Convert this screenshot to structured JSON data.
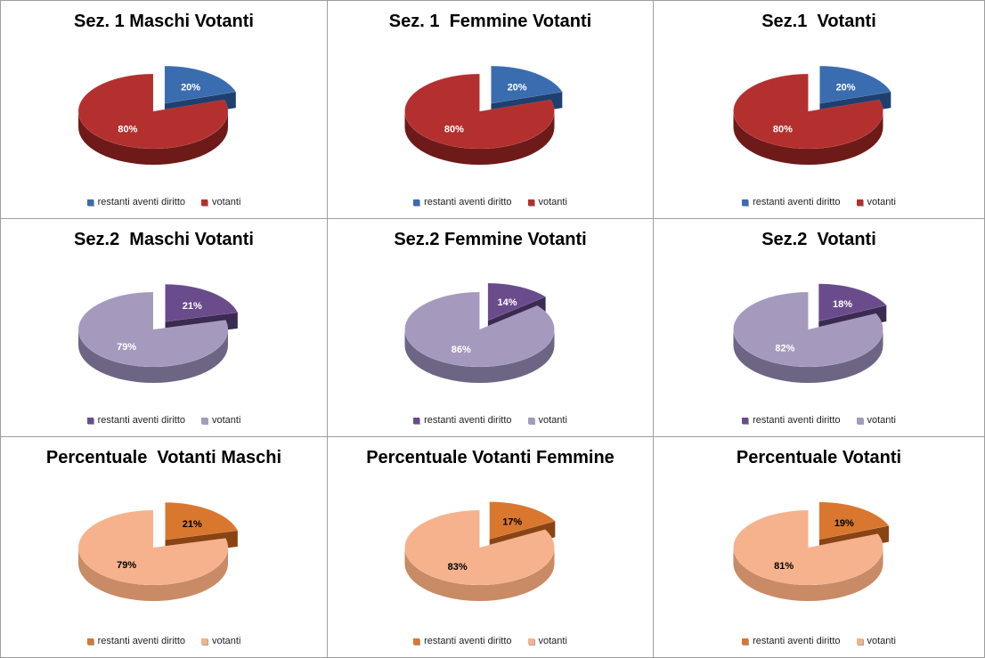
{
  "chart_data": [
    {
      "type": "pie",
      "title": "Sez. 1 Maschi Votanti",
      "categories": [
        "restanti aventi diritto",
        "votanti"
      ],
      "values": [
        20,
        80
      ],
      "labels": [
        "20%",
        "80%"
      ],
      "colors": [
        "#3a6cb0",
        "#b3302e"
      ],
      "side_colors": [
        "#1f3f6e",
        "#6e1a19"
      ],
      "label_color": "#ffffff",
      "legend_position": "bottom"
    },
    {
      "type": "pie",
      "title": "Sez. 1  Femmine Votanti",
      "categories": [
        "restanti aventi diritto",
        "votanti"
      ],
      "values": [
        20,
        80
      ],
      "labels": [
        "20%",
        "80%"
      ],
      "colors": [
        "#3a6cb0",
        "#b3302e"
      ],
      "side_colors": [
        "#1f3f6e",
        "#6e1a19"
      ],
      "label_color": "#ffffff",
      "legend_position": "bottom"
    },
    {
      "type": "pie",
      "title": "Sez.1  Votanti",
      "categories": [
        "restanti aventi diritto",
        "votanti"
      ],
      "values": [
        20,
        80
      ],
      "labels": [
        "20%",
        "80%"
      ],
      "colors": [
        "#3a6cb0",
        "#b3302e"
      ],
      "side_colors": [
        "#1f3f6e",
        "#6e1a19"
      ],
      "label_color": "#ffffff",
      "legend_position": "bottom"
    },
    {
      "type": "pie",
      "title": "Sez.2  Maschi Votanti",
      "categories": [
        "restanti aventi diritto",
        "votanti"
      ],
      "values": [
        21,
        79
      ],
      "labels": [
        "21%",
        "79%"
      ],
      "colors": [
        "#6a4c8c",
        "#a59abd"
      ],
      "side_colors": [
        "#3b2a52",
        "#6e6585"
      ],
      "label_color": "#ffffff",
      "legend_position": "bottom"
    },
    {
      "type": "pie",
      "title": "Sez.2 Femmine Votanti",
      "categories": [
        "restanti aventi diritto",
        "votanti"
      ],
      "values": [
        14,
        86
      ],
      "labels": [
        "14%",
        "86%"
      ],
      "colors": [
        "#6a4c8c",
        "#a59abd"
      ],
      "side_colors": [
        "#3b2a52",
        "#6e6585"
      ],
      "label_color": "#ffffff",
      "legend_position": "bottom"
    },
    {
      "type": "pie",
      "title": "Sez.2  Votanti",
      "categories": [
        "restanti aventi diritto",
        "votanti"
      ],
      "values": [
        18,
        82
      ],
      "labels": [
        "18%",
        "82%"
      ],
      "colors": [
        "#6a4c8c",
        "#a59abd"
      ],
      "side_colors": [
        "#3b2a52",
        "#6e6585"
      ],
      "label_color": "#ffffff",
      "legend_position": "bottom"
    },
    {
      "type": "pie",
      "title": "Percentuale  Votanti Maschi",
      "categories": [
        "restanti aventi diritto",
        "votanti"
      ],
      "values": [
        21,
        79
      ],
      "labels": [
        "21%",
        "79%"
      ],
      "colors": [
        "#d9772f",
        "#f5b28c"
      ],
      "side_colors": [
        "#8a4414",
        "#c98a66"
      ],
      "label_color": "#000000",
      "legend_position": "bottom"
    },
    {
      "type": "pie",
      "title": "Percentuale Votanti Femmine",
      "categories": [
        "restanti aventi diritto",
        "votanti"
      ],
      "values": [
        17,
        83
      ],
      "labels": [
        "17%",
        "83%"
      ],
      "colors": [
        "#d9772f",
        "#f5b28c"
      ],
      "side_colors": [
        "#8a4414",
        "#c98a66"
      ],
      "label_color": "#000000",
      "legend_position": "bottom"
    },
    {
      "type": "pie",
      "title": "Percentuale Votanti",
      "categories": [
        "restanti aventi diritto",
        "votanti"
      ],
      "values": [
        19,
        81
      ],
      "labels": [
        "19%",
        "81%"
      ],
      "colors": [
        "#d9772f",
        "#f5b28c"
      ],
      "side_colors": [
        "#8a4414",
        "#c98a66"
      ],
      "label_color": "#000000",
      "legend_position": "bottom"
    }
  ]
}
